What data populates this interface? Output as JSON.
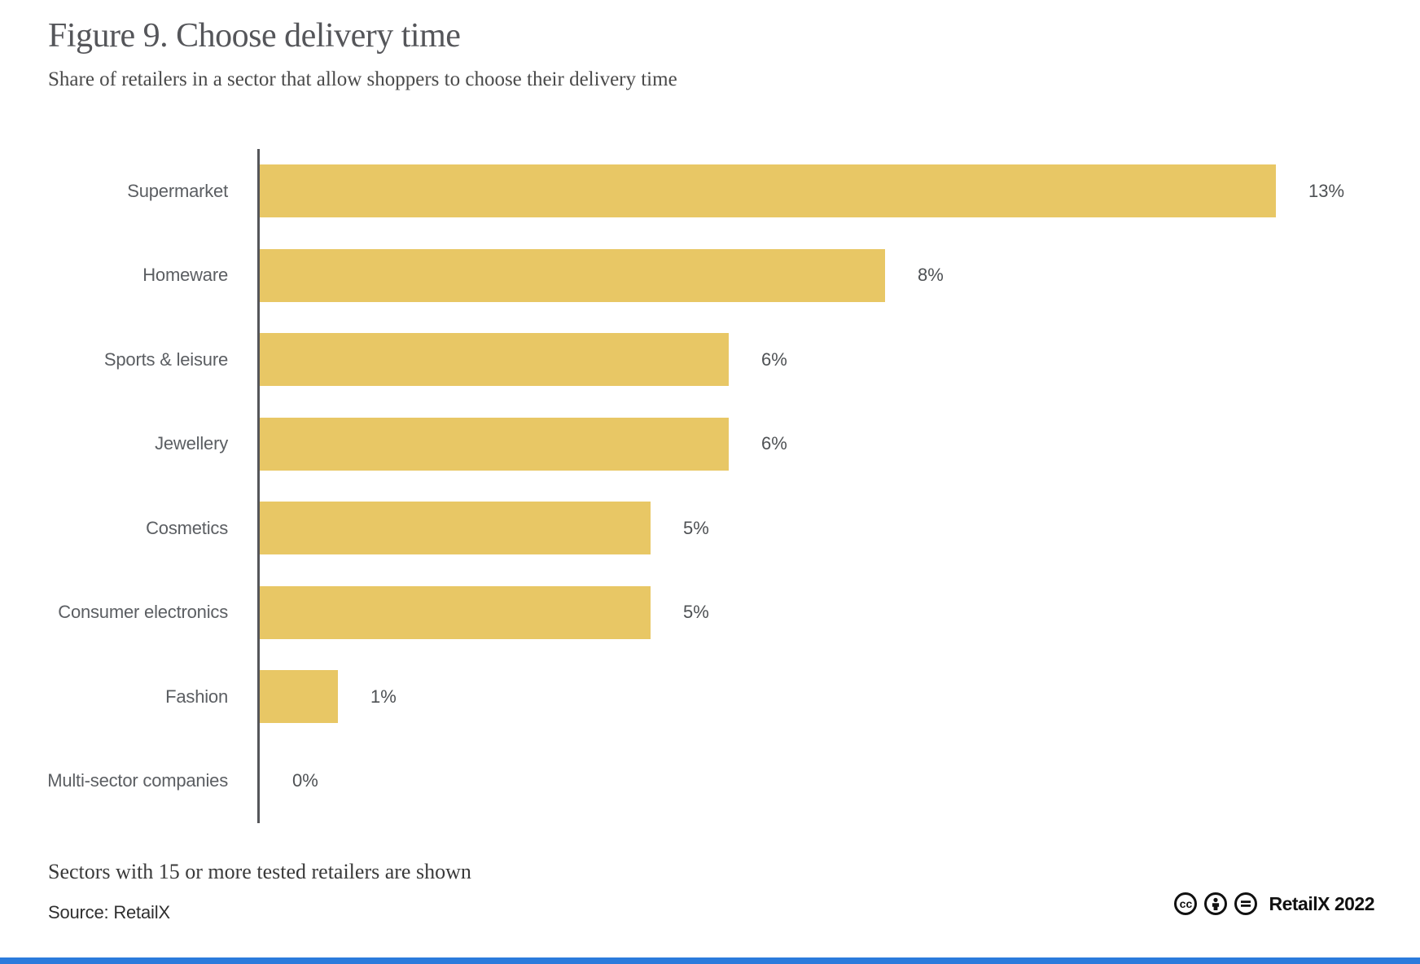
{
  "header": {
    "title": "Figure 9. Choose delivery time",
    "subtitle": "Share of retailers in a sector that allow shoppers to choose their delivery time"
  },
  "chart_data": {
    "type": "bar",
    "orientation": "horizontal",
    "title": "Figure 9. Choose delivery time",
    "subtitle": "Share of retailers in a sector that allow shoppers to choose their delivery time",
    "categories": [
      "Supermarket",
      "Homeware",
      "Sports & leisure",
      "Jewellery",
      "Cosmetics",
      "Consumer electronics",
      "Fashion",
      "Multi-sector companies"
    ],
    "values": [
      13,
      8,
      6,
      6,
      5,
      5,
      1,
      0
    ],
    "value_labels": [
      "13%",
      "8%",
      "6%",
      "6%",
      "5%",
      "5%",
      "1%",
      "0%"
    ],
    "unit": "%",
    "xlabel": "",
    "ylabel": "",
    "xlim": [
      0,
      13.5
    ],
    "grid": false,
    "legend": null,
    "bar_color": "#e8c765",
    "axis_color": "#55565a"
  },
  "footer": {
    "note": "Sectors with 15 or more tested retailers are shown",
    "source": "Source: RetailX",
    "cc_glyph": "cc",
    "license_icon_names": [
      "cc-icon",
      "attribution-person-icon",
      "no-derivatives-equals-icon"
    ],
    "credit": "RetailX 2022",
    "accent_bar_color": "#2b7bdc"
  }
}
